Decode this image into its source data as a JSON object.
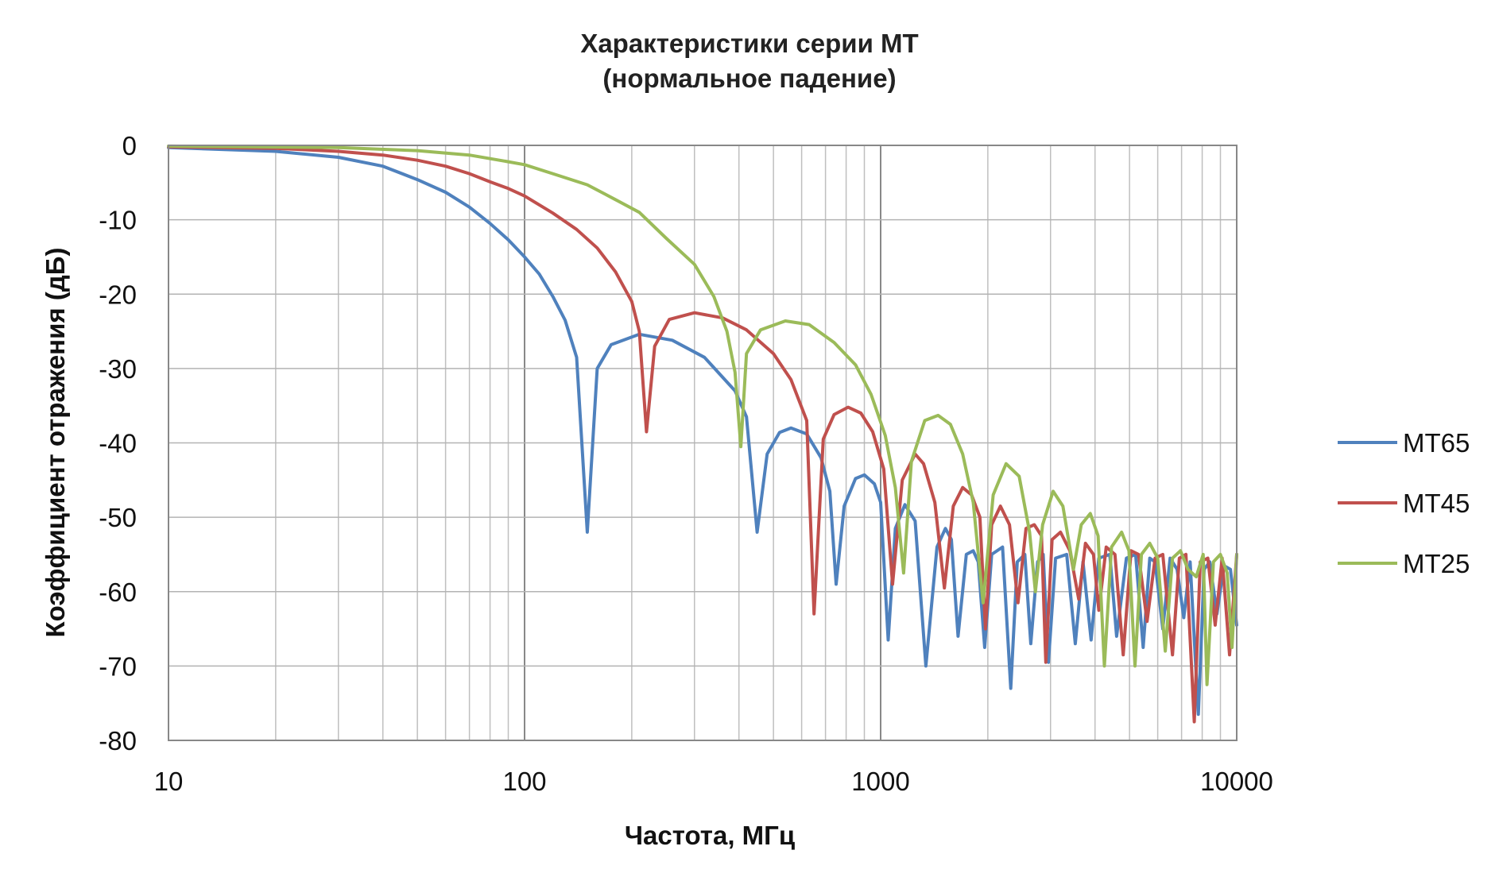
{
  "chart_data": {
    "type": "line",
    "title": "Характеристики серии МТ",
    "subtitle": "(нормальное падение)",
    "xlabel": "Частота, МГц",
    "ylabel": "Коэффициент отражения (дБ)",
    "x_scale": "log",
    "xlim": [
      10,
      10000
    ],
    "ylim": [
      -80,
      0
    ],
    "x_ticks": [
      "10",
      "100",
      "1000",
      "10000"
    ],
    "y_ticks": [
      "0",
      "-10",
      "-20",
      "-30",
      "-40",
      "-50",
      "-60",
      "-70",
      "-80"
    ],
    "grid": true,
    "legend_position": "right",
    "series": [
      {
        "name": "МТ65",
        "color": "#4F81BD",
        "points": [
          [
            10,
            -0.3
          ],
          [
            20,
            -0.8
          ],
          [
            30,
            -1.6
          ],
          [
            40,
            -2.8
          ],
          [
            50,
            -4.6
          ],
          [
            60,
            -6.3
          ],
          [
            70,
            -8.3
          ],
          [
            80,
            -10.5
          ],
          [
            90,
            -12.7
          ],
          [
            100,
            -15.0
          ],
          [
            110,
            -17.3
          ],
          [
            120,
            -20.3
          ],
          [
            130,
            -23.5
          ],
          [
            140,
            -28.5
          ],
          [
            150,
            -52.0
          ],
          [
            160,
            -30.0
          ],
          [
            175,
            -26.8
          ],
          [
            210,
            -25.4
          ],
          [
            260,
            -26.2
          ],
          [
            320,
            -28.5
          ],
          [
            390,
            -33.0
          ],
          [
            420,
            -36.5
          ],
          [
            450,
            -52.0
          ],
          [
            480,
            -41.5
          ],
          [
            520,
            -38.6
          ],
          [
            560,
            -38.0
          ],
          [
            620,
            -38.8
          ],
          [
            680,
            -42.0
          ],
          [
            720,
            -46.5
          ],
          [
            750,
            -59.0
          ],
          [
            790,
            -48.5
          ],
          [
            850,
            -44.8
          ],
          [
            900,
            -44.3
          ],
          [
            960,
            -45.5
          ],
          [
            1000,
            -48.0
          ],
          [
            1050,
            -66.5
          ],
          [
            1100,
            -51.5
          ],
          [
            1170,
            -48.3
          ],
          [
            1250,
            -50.5
          ],
          [
            1340,
            -70.0
          ],
          [
            1440,
            -54.0
          ],
          [
            1520,
            -51.5
          ],
          [
            1580,
            -53.0
          ],
          [
            1650,
            -66.0
          ],
          [
            1740,
            -55.0
          ],
          [
            1820,
            -54.5
          ],
          [
            1880,
            -56.0
          ],
          [
            1960,
            -67.5
          ],
          [
            2050,
            -55.0
          ],
          [
            2200,
            -54.0
          ],
          [
            2320,
            -73.0
          ],
          [
            2420,
            -56.0
          ],
          [
            2540,
            -55.0
          ],
          [
            2640,
            -67.0
          ],
          [
            2760,
            -56.0
          ],
          [
            2860,
            -55.0
          ],
          [
            2960,
            -69.5
          ],
          [
            3100,
            -55.5
          ],
          [
            3330,
            -55.0
          ],
          [
            3520,
            -67.0
          ],
          [
            3700,
            -56.0
          ],
          [
            3900,
            -66.5
          ],
          [
            4100,
            -55.5
          ],
          [
            4400,
            -55.0
          ],
          [
            4600,
            -66.0
          ],
          [
            4900,
            -55.5
          ],
          [
            5200,
            -55.0
          ],
          [
            5460,
            -67.5
          ],
          [
            5700,
            -55.5
          ],
          [
            5900,
            -56.0
          ],
          [
            6200,
            -65.0
          ],
          [
            6500,
            -55.5
          ],
          [
            6800,
            -57.0
          ],
          [
            7100,
            -63.5
          ],
          [
            7400,
            -56.0
          ],
          [
            7800,
            -76.5
          ],
          [
            8100,
            -57.0
          ],
          [
            8400,
            -56.0
          ],
          [
            8800,
            -63.0
          ],
          [
            9200,
            -56.5
          ],
          [
            9600,
            -57.0
          ],
          [
            10000,
            -64.5
          ]
        ]
      },
      {
        "name": "МТ45",
        "color": "#C0504D",
        "points": [
          [
            10,
            -0.2
          ],
          [
            20,
            -0.4
          ],
          [
            30,
            -0.8
          ],
          [
            40,
            -1.3
          ],
          [
            50,
            -2.0
          ],
          [
            60,
            -2.8
          ],
          [
            70,
            -3.8
          ],
          [
            80,
            -4.9
          ],
          [
            90,
            -5.8
          ],
          [
            100,
            -6.8
          ],
          [
            120,
            -9.1
          ],
          [
            140,
            -11.3
          ],
          [
            160,
            -13.8
          ],
          [
            180,
            -17.0
          ],
          [
            200,
            -21.0
          ],
          [
            210,
            -25.0
          ],
          [
            220,
            -38.5
          ],
          [
            232,
            -27.0
          ],
          [
            255,
            -23.4
          ],
          [
            300,
            -22.5
          ],
          [
            360,
            -23.2
          ],
          [
            420,
            -24.8
          ],
          [
            500,
            -28.0
          ],
          [
            560,
            -31.5
          ],
          [
            620,
            -37.0
          ],
          [
            650,
            -63.0
          ],
          [
            690,
            -39.5
          ],
          [
            740,
            -36.2
          ],
          [
            810,
            -35.2
          ],
          [
            880,
            -36.0
          ],
          [
            950,
            -38.5
          ],
          [
            1020,
            -43.5
          ],
          [
            1080,
            -59.0
          ],
          [
            1150,
            -45.0
          ],
          [
            1250,
            -41.5
          ],
          [
            1320,
            -42.8
          ],
          [
            1420,
            -48.0
          ],
          [
            1510,
            -59.5
          ],
          [
            1600,
            -48.5
          ],
          [
            1700,
            -46.0
          ],
          [
            1800,
            -47.0
          ],
          [
            1900,
            -50.0
          ],
          [
            1970,
            -65.0
          ],
          [
            2050,
            -51.0
          ],
          [
            2170,
            -48.5
          ],
          [
            2300,
            -51.0
          ],
          [
            2430,
            -61.5
          ],
          [
            2560,
            -51.5
          ],
          [
            2700,
            -51.0
          ],
          [
            2830,
            -52.5
          ],
          [
            2910,
            -69.5
          ],
          [
            3030,
            -53.0
          ],
          [
            3200,
            -52.0
          ],
          [
            3400,
            -54.5
          ],
          [
            3600,
            -61.0
          ],
          [
            3760,
            -53.5
          ],
          [
            3960,
            -55.0
          ],
          [
            4100,
            -62.5
          ],
          [
            4300,
            -54.0
          ],
          [
            4550,
            -55.0
          ],
          [
            4800,
            -68.5
          ],
          [
            5050,
            -54.5
          ],
          [
            5300,
            -55.0
          ],
          [
            5600,
            -64.0
          ],
          [
            5900,
            -55.5
          ],
          [
            6200,
            -55.0
          ],
          [
            6600,
            -68.5
          ],
          [
            6900,
            -55.5
          ],
          [
            7200,
            -55.0
          ],
          [
            7600,
            -77.5
          ],
          [
            7900,
            -56.0
          ],
          [
            8300,
            -55.5
          ],
          [
            8700,
            -64.5
          ],
          [
            9100,
            -55.5
          ],
          [
            9550,
            -68.5
          ],
          [
            10000,
            -55.0
          ]
        ]
      },
      {
        "name": "МТ25",
        "color": "#9BBB59",
        "points": [
          [
            10,
            -0.1
          ],
          [
            30,
            -0.3
          ],
          [
            50,
            -0.7
          ],
          [
            70,
            -1.3
          ],
          [
            90,
            -2.2
          ],
          [
            100,
            -2.6
          ],
          [
            120,
            -3.8
          ],
          [
            150,
            -5.3
          ],
          [
            180,
            -7.3
          ],
          [
            210,
            -9.0
          ],
          [
            250,
            -12.5
          ],
          [
            300,
            -16.0
          ],
          [
            340,
            -20.3
          ],
          [
            370,
            -25.0
          ],
          [
            390,
            -30.5
          ],
          [
            405,
            -40.5
          ],
          [
            420,
            -28.0
          ],
          [
            460,
            -24.8
          ],
          [
            540,
            -23.6
          ],
          [
            630,
            -24.1
          ],
          [
            740,
            -26.5
          ],
          [
            850,
            -29.5
          ],
          [
            940,
            -33.5
          ],
          [
            1030,
            -39.0
          ],
          [
            1100,
            -46.0
          ],
          [
            1160,
            -57.5
          ],
          [
            1220,
            -42.5
          ],
          [
            1330,
            -37.0
          ],
          [
            1450,
            -36.3
          ],
          [
            1570,
            -37.5
          ],
          [
            1700,
            -41.5
          ],
          [
            1820,
            -48.0
          ],
          [
            1940,
            -61.5
          ],
          [
            2070,
            -47.0
          ],
          [
            2250,
            -42.8
          ],
          [
            2450,
            -44.5
          ],
          [
            2620,
            -52.0
          ],
          [
            2720,
            -60.0
          ],
          [
            2850,
            -51.0
          ],
          [
            3050,
            -46.5
          ],
          [
            3250,
            -48.5
          ],
          [
            3480,
            -57.0
          ],
          [
            3660,
            -51.0
          ],
          [
            3880,
            -49.5
          ],
          [
            4080,
            -52.5
          ],
          [
            4250,
            -70.0
          ],
          [
            4450,
            -54.0
          ],
          [
            4750,
            -52.0
          ],
          [
            4980,
            -54.5
          ],
          [
            5180,
            -70.0
          ],
          [
            5400,
            -55.0
          ],
          [
            5700,
            -53.5
          ],
          [
            6000,
            -55.5
          ],
          [
            6300,
            -68.0
          ],
          [
            6600,
            -55.5
          ],
          [
            6950,
            -54.5
          ],
          [
            7300,
            -57.0
          ],
          [
            7700,
            -58.0
          ],
          [
            8050,
            -55.0
          ],
          [
            8250,
            -72.5
          ],
          [
            8600,
            -56.0
          ],
          [
            9000,
            -55.0
          ],
          [
            9400,
            -57.5
          ],
          [
            9700,
            -67.5
          ],
          [
            10000,
            -55.0
          ]
        ]
      }
    ]
  }
}
